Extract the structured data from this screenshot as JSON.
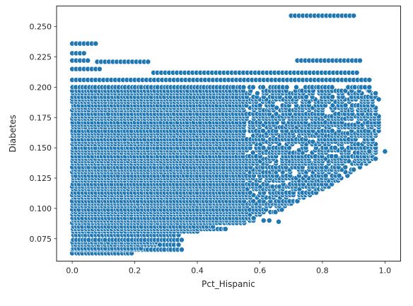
{
  "chart_data": {
    "type": "scatter",
    "title": "",
    "xlabel": "Pct_Hispanic",
    "ylabel": "Diabetes",
    "xlim": [
      -0.05,
      1.05
    ],
    "ylim": [
      0.0565,
      0.267
    ],
    "xticks": [
      0.0,
      0.2,
      0.4,
      0.6,
      0.8,
      1.0
    ],
    "xtick_labels": [
      "0.0",
      "0.2",
      "0.4",
      "0.6",
      "0.8",
      "1.0"
    ],
    "yticks": [
      0.075,
      0.1,
      0.125,
      0.15,
      0.175,
      0.2,
      0.225,
      0.25
    ],
    "ytick_labels": [
      "0.075",
      "0.100",
      "0.125",
      "0.150",
      "0.175",
      "0.200",
      "0.225",
      "0.250"
    ],
    "grid": false,
    "marker_color": "#1f77b4",
    "marker_edge_color": "#ffffff",
    "y_levels": [
      0.063,
      0.066,
      0.067,
      0.07,
      0.072,
      0.074,
      0.078,
      0.081,
      0.083,
      0.085,
      0.088,
      0.09,
      0.092,
      0.095,
      0.097,
      0.099,
      0.102,
      0.104,
      0.106,
      0.109,
      0.111,
      0.113,
      0.116,
      0.118,
      0.12,
      0.123,
      0.125,
      0.127,
      0.13,
      0.132,
      0.134,
      0.137,
      0.139,
      0.141,
      0.143,
      0.146,
      0.148,
      0.15,
      0.153,
      0.155,
      0.157,
      0.16,
      0.162,
      0.164,
      0.167,
      0.169,
      0.171,
      0.174,
      0.176,
      0.178,
      0.181,
      0.183,
      0.185,
      0.188,
      0.19,
      0.192,
      0.195,
      0.197,
      0.2
    ],
    "x_upper_by_level": [
      0.19,
      0.35,
      0.22,
      0.34,
      0.27,
      0.35,
      0.34,
      0.4,
      0.49,
      0.45,
      0.55,
      0.63,
      0.58,
      0.6,
      0.65,
      0.67,
      0.68,
      0.7,
      0.72,
      0.74,
      0.76,
      0.78,
      0.8,
      0.82,
      0.83,
      0.85,
      0.86,
      0.88,
      0.89,
      0.9,
      0.92,
      0.94,
      0.95,
      0.96,
      0.96,
      0.97,
      0.97,
      0.97,
      0.97,
      0.96,
      0.96,
      0.97,
      0.97,
      0.98,
      0.98,
      0.98,
      0.98,
      0.98,
      0.98,
      0.97,
      0.97,
      0.97,
      0.96,
      0.96,
      0.96,
      0.97,
      0.97,
      0.95,
      0.95
    ],
    "sparse_rows": [
      {
        "y": 0.259,
        "x_from": 0.7,
        "x_to": 0.9
      },
      {
        "y": 0.236,
        "x_from": 0.0,
        "x_to": 0.08
      },
      {
        "y": 0.228,
        "x_from": 0.0,
        "x_to": 0.04
      },
      {
        "y": 0.222,
        "x_from": 0.0,
        "x_to": 0.05
      },
      {
        "y": 0.222,
        "x_from": 0.72,
        "x_to": 0.92
      },
      {
        "y": 0.221,
        "x_from": 0.08,
        "x_to": 0.25
      },
      {
        "y": 0.215,
        "x_from": 0.0,
        "x_to": 0.09
      },
      {
        "y": 0.212,
        "x_from": 0.26,
        "x_to": 0.92
      },
      {
        "y": 0.206,
        "x_from": 0.0,
        "x_to": 0.96
      },
      {
        "y": 0.089,
        "x_from": 0.66,
        "x_to": 0.67
      }
    ],
    "outliers": [
      {
        "x": 1.0,
        "y": 0.147
      },
      {
        "x": 0.97,
        "y": 0.141
      },
      {
        "x": 0.95,
        "y": 0.147
      },
      {
        "x": 0.28,
        "y": 0.07
      },
      {
        "x": 0.34,
        "y": 0.07
      },
      {
        "x": 0.98,
        "y": 0.19
      }
    ]
  }
}
